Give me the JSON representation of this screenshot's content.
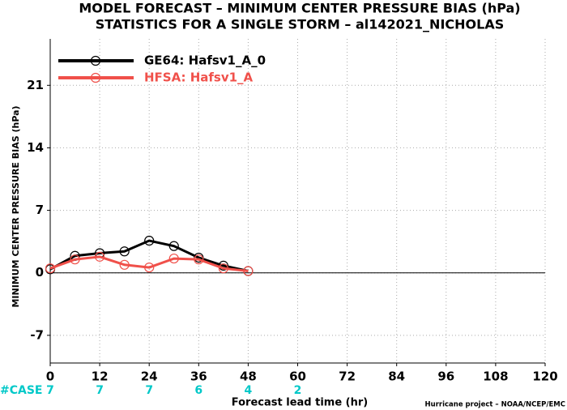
{
  "chart_data": {
    "type": "line",
    "title": "MODEL FORECAST – MINIMUM CENTER PRESSURE BIAS (hPa)",
    "subtitle": "STATISTICS FOR A SINGLE STORM – al142021_NICHOLAS",
    "x_label": "Forecast lead time (hr)",
    "y_label": "MINIMUM CENTER PRESSURE BIAS (hPa)",
    "x": [
      0,
      6,
      12,
      18,
      24,
      30,
      36,
      42,
      48
    ],
    "series": [
      {
        "name": "GE64: Hafsv1_A_0",
        "color": "#000000",
        "values": [
          0.4,
          1.9,
          2.2,
          2.4,
          3.6,
          3.0,
          1.7,
          0.8,
          0.2
        ]
      },
      {
        "name": "HFSA: Hafsv1_A",
        "color": "#f0504a",
        "values": [
          0.5,
          1.5,
          1.8,
          0.9,
          0.6,
          1.6,
          1.5,
          0.5,
          0.2
        ]
      }
    ],
    "xlim": [
      0,
      120
    ],
    "xticks": [
      0,
      12,
      24,
      36,
      48,
      60,
      72,
      84,
      96,
      108,
      120
    ],
    "ylim": [
      -10.1,
      26.2
    ],
    "yticks": [
      -7,
      0,
      7,
      14,
      21
    ],
    "grid": true,
    "legend": "upper-left",
    "case_label": "#CASE",
    "case_color": "#00c8c8",
    "case_x": [
      0,
      12,
      24,
      36,
      48,
      60
    ],
    "case_counts": [
      7,
      7,
      7,
      6,
      4,
      2
    ],
    "credit": "Hurricane project – NOAA/NCEP/EMC"
  }
}
